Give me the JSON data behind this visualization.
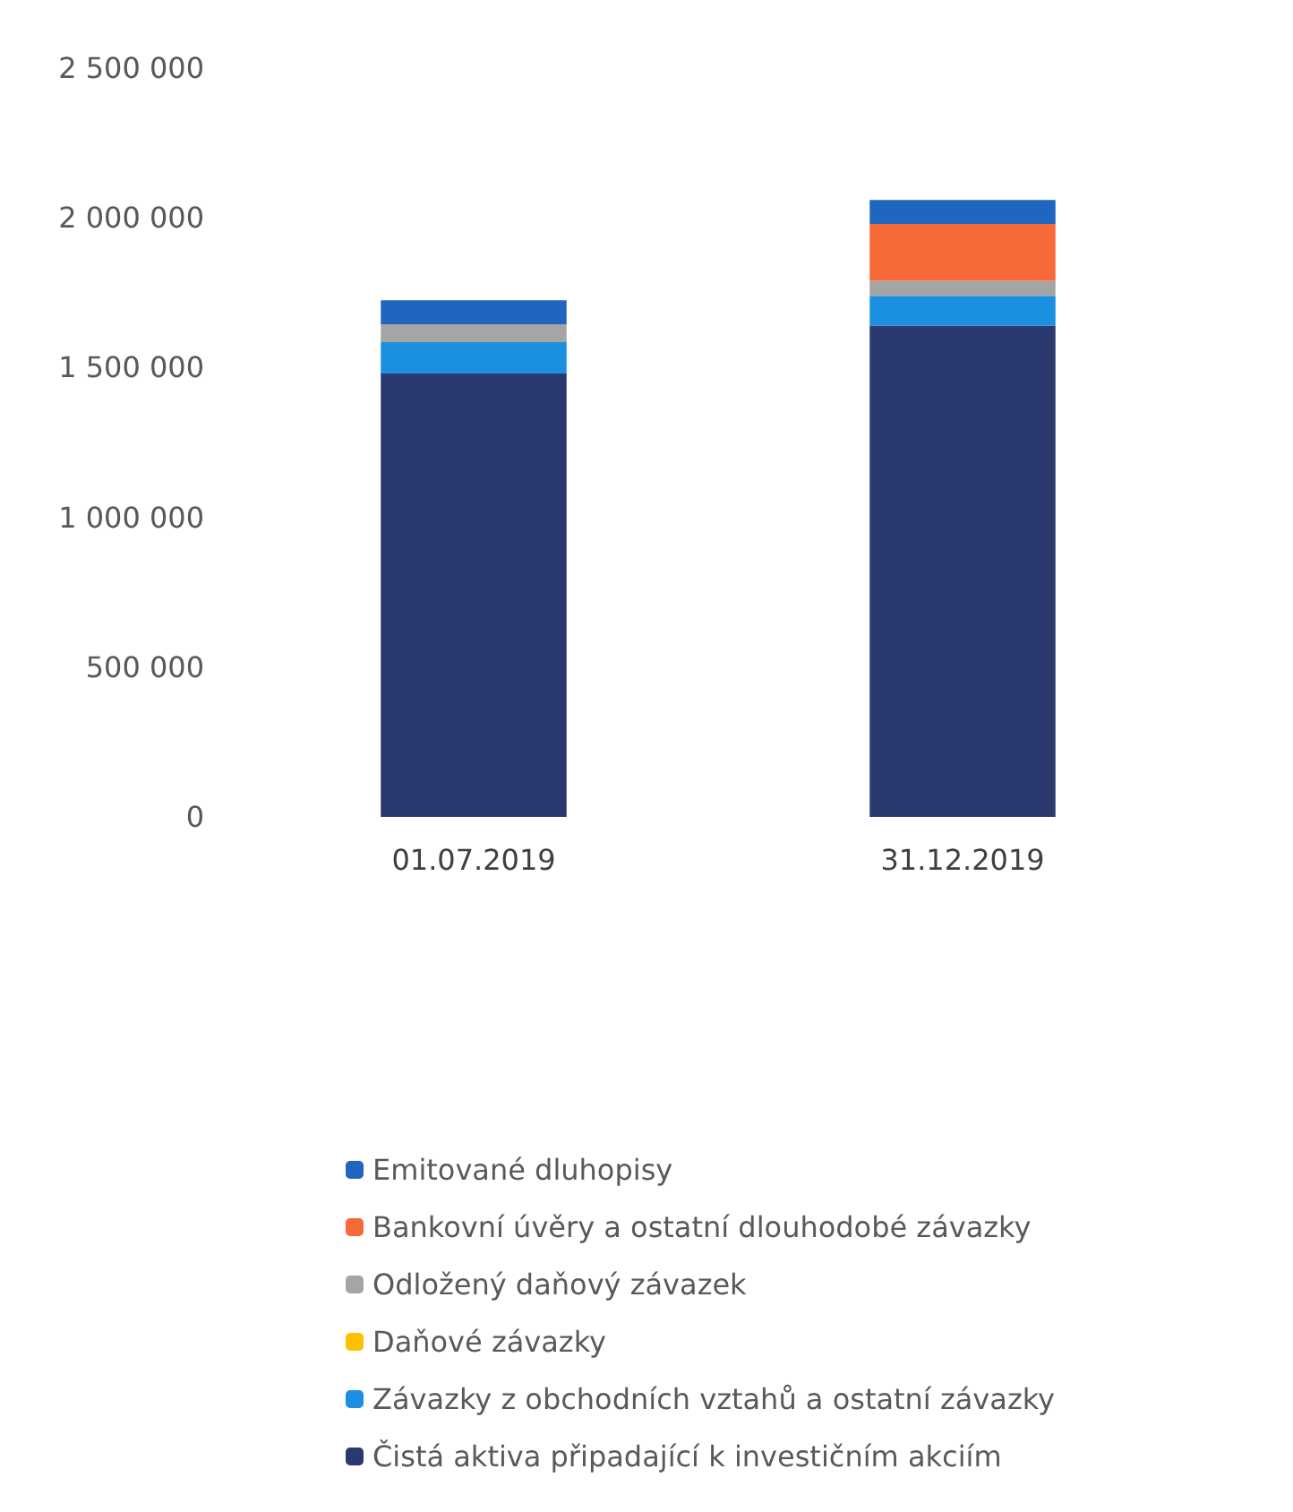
{
  "chart_data": {
    "type": "bar",
    "stacked": true,
    "categories": [
      "01.07.2019",
      "31.12.2019"
    ],
    "series": [
      {
        "name": "Čistá aktiva připadající k investičním akciím",
        "color": "#2b3a6e",
        "values": [
          1480000,
          1640000
        ]
      },
      {
        "name": "Závazky z obchodních vztahů a ostatní závazky",
        "color": "#1b8fe0",
        "values": [
          105000,
          100000
        ]
      },
      {
        "name": "Daňové závazky",
        "color": "#ffc000",
        "values": [
          0,
          0
        ]
      },
      {
        "name": "Odložený daňový závazek",
        "color": "#a5a5a5",
        "values": [
          60000,
          50000
        ]
      },
      {
        "name": "Bankovní úvěry a ostatní dlouhodobé závazky",
        "color": "#f8693a",
        "values": [
          0,
          190000
        ]
      },
      {
        "name": "Emitované dluhopisy",
        "color": "#1f66c0",
        "values": [
          80000,
          80000
        ]
      }
    ],
    "ylim": [
      0,
      2500000
    ],
    "yticks": [
      0,
      500000,
      1000000,
      1500000,
      2000000,
      2500000
    ],
    "grid": false,
    "legend": "bottom"
  }
}
